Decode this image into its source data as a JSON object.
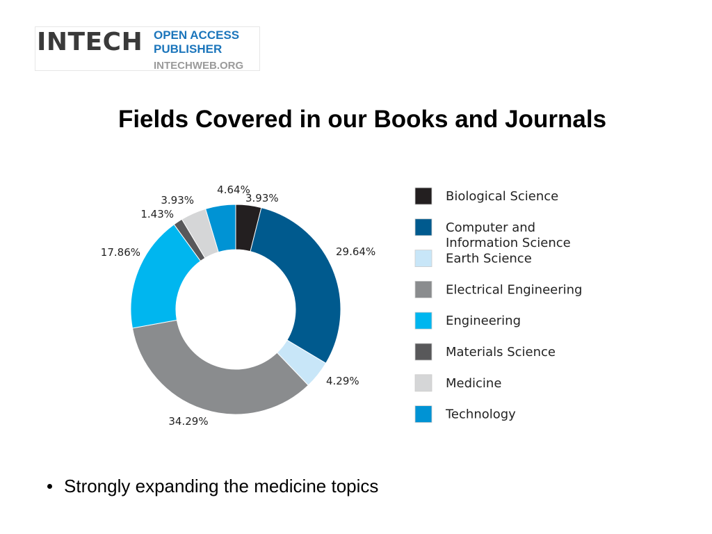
{
  "logo": {
    "brand": "INTECH",
    "line1": "OPEN ACCESS",
    "line2": "PUBLISHER",
    "url": "INTECHWEB.ORG",
    "brand_color": "#3a3a3a",
    "accent_color": "#1b75bb",
    "url_color": "#9a9a9a"
  },
  "title": "Fields Covered in our Books and Journals",
  "chart_data": {
    "type": "pie",
    "variant": "donut",
    "legend_position": "right",
    "slices": [
      {
        "name": "Biological Science",
        "value": 3.93,
        "label": "3.93%",
        "color": "#231f20"
      },
      {
        "name": "Computer and Information Science",
        "label_lines": [
          "Computer and",
          "Information Science"
        ],
        "value": 29.64,
        "label": "29.64%",
        "color": "#005a8e"
      },
      {
        "name": "Earth Science",
        "value": 4.29,
        "label": "4.29%",
        "color": "#c8e6f8"
      },
      {
        "name": "Electrical Engineering",
        "value": 34.29,
        "label": "34.29%",
        "color": "#8a8c8e"
      },
      {
        "name": "Engineering",
        "value": 17.86,
        "label": "17.86%",
        "color": "#00b6ef"
      },
      {
        "name": "Materials Science",
        "value": 1.43,
        "label": "1.43%",
        "color": "#58585a"
      },
      {
        "name": "Medicine",
        "value": 3.93,
        "label": "3.93%",
        "color": "#d5d6d7"
      },
      {
        "name": "Technology",
        "value": 4.64,
        "label": "4.64%",
        "color": "#0093d4"
      }
    ]
  },
  "bullets": [
    "Strongly expanding the medicine topics"
  ]
}
